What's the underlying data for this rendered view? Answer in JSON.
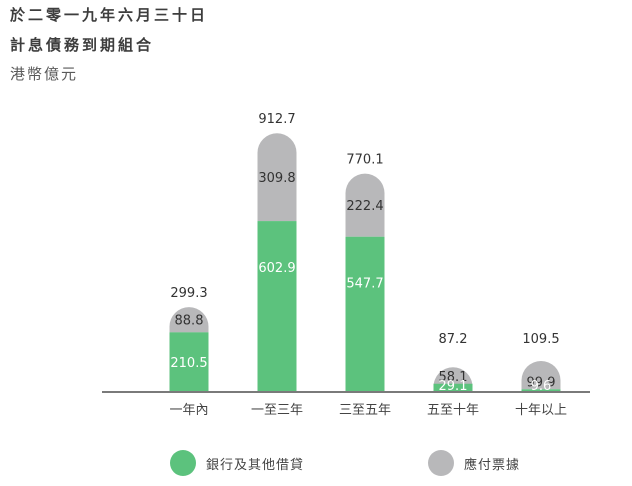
{
  "header": {
    "title_line1": "於二零一九年六月三十日",
    "title_line2": "計息債務到期組合",
    "unit": "港幣億元"
  },
  "colors": {
    "green": "#5cc27d",
    "gray": "#b8b8ba",
    "axis": "#7a7a7a"
  },
  "chart_data": {
    "type": "bar",
    "stacked": true,
    "categories": [
      "一年內",
      "一至三年",
      "三至五年",
      "五至十年",
      "十年以上"
    ],
    "series": [
      {
        "name": "銀行及其他借貸",
        "values": [
          210.5,
          602.9,
          547.7,
          29.1,
          9.6
        ]
      },
      {
        "name": "應付票據",
        "values": [
          88.8,
          309.8,
          222.4,
          58.1,
          99.9
        ]
      }
    ],
    "totals": [
      299.3,
      912.7,
      770.1,
      87.2,
      109.5
    ],
    "value_labels": {
      "green": [
        "210.5",
        "602.9",
        "547.7",
        "29.1",
        "9.6"
      ],
      "gray": [
        "88.8",
        "309.8",
        "222.4",
        "58.1",
        "99.9"
      ],
      "totals": [
        "299.3",
        "912.7",
        "770.1",
        "87.2",
        "109.5"
      ]
    },
    "title": "計息債務到期組合",
    "ylabel": "港幣億元",
    "legend_position": "bottom",
    "grid": false
  },
  "legend": {
    "items": [
      {
        "label": "銀行及其他借貸"
      },
      {
        "label": "應付票據"
      }
    ]
  }
}
